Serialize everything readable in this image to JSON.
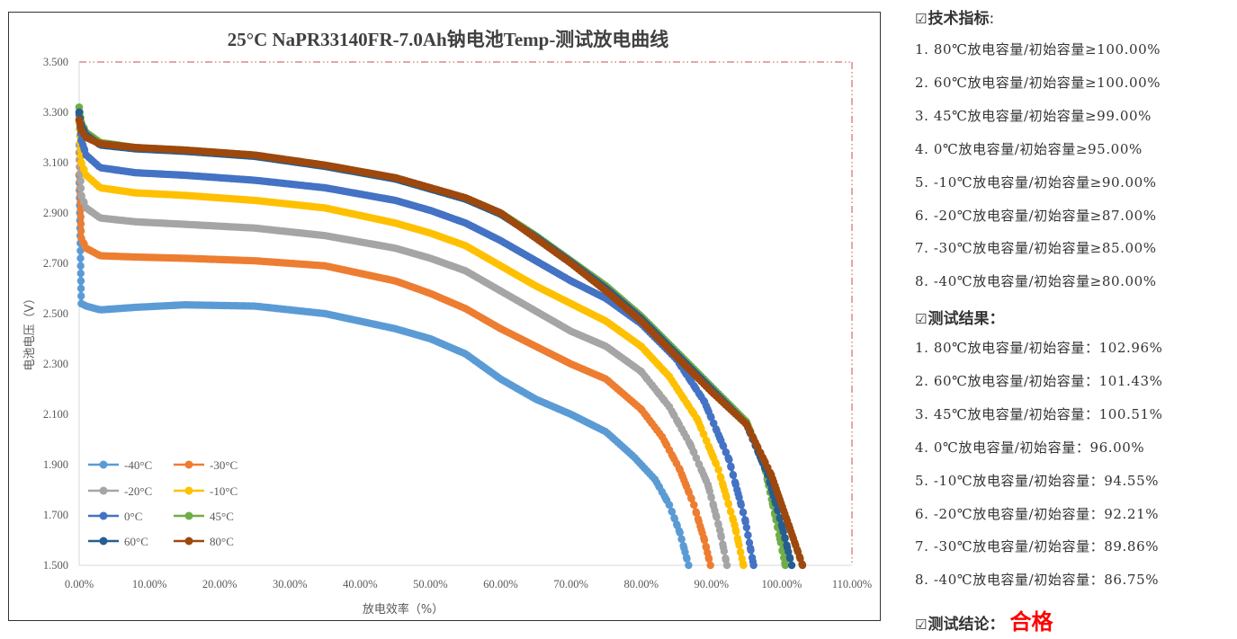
{
  "chart_data": {
    "type": "line",
    "title": "25°C NaPR33140FR-7.0Ah钠电池Temp-测试放电曲线",
    "xlabel": "放电效率（%）",
    "ylabel": "电池电压（V）",
    "xlim": [
      0,
      110
    ],
    "ylim": [
      1.5,
      3.5
    ],
    "x_ticks": [
      "0.00%",
      "10.00%",
      "20.00%",
      "30.00%",
      "40.00%",
      "50.00%",
      "60.00%",
      "70.00%",
      "80.00%",
      "90.00%",
      "100.00%",
      "110.00%"
    ],
    "y_ticks": [
      "1.500",
      "1.700",
      "1.900",
      "2.100",
      "2.300",
      "2.500",
      "2.700",
      "2.900",
      "3.100",
      "3.300",
      "3.500"
    ],
    "grid": false,
    "legend_position": "bottom-left",
    "series": [
      {
        "name": "-40°C",
        "color": "#5b9bd5",
        "x": [
          0,
          0.3,
          1,
          3,
          8,
          15,
          25,
          35,
          45,
          50,
          55,
          60,
          65,
          70,
          75,
          79,
          82,
          84,
          85.5,
          86.75
        ],
        "y": [
          3.05,
          2.54,
          2.53,
          2.515,
          2.525,
          2.535,
          2.53,
          2.5,
          2.44,
          2.4,
          2.34,
          2.24,
          2.16,
          2.1,
          2.03,
          1.93,
          1.84,
          1.74,
          1.63,
          1.5
        ]
      },
      {
        "name": "-30°C",
        "color": "#ed7d31",
        "x": [
          0,
          0.3,
          1,
          3,
          8,
          15,
          25,
          35,
          45,
          50,
          55,
          60,
          65,
          70,
          75,
          80,
          83,
          85.5,
          87.5,
          89,
          89.86
        ],
        "y": [
          3.14,
          2.8,
          2.76,
          2.73,
          2.725,
          2.72,
          2.71,
          2.69,
          2.63,
          2.58,
          2.52,
          2.44,
          2.37,
          2.3,
          2.24,
          2.12,
          2.01,
          1.88,
          1.74,
          1.6,
          1.5
        ]
      },
      {
        "name": "-20°C",
        "color": "#a5a5a5",
        "x": [
          0,
          0.3,
          1,
          3,
          8,
          15,
          25,
          35,
          45,
          50,
          55,
          60,
          65,
          70,
          75,
          80,
          84,
          87,
          89.5,
          91.2,
          92.21
        ],
        "y": [
          3.17,
          2.97,
          2.92,
          2.88,
          2.865,
          2.855,
          2.84,
          2.81,
          2.76,
          2.72,
          2.67,
          2.59,
          2.51,
          2.43,
          2.37,
          2.27,
          2.13,
          1.98,
          1.82,
          1.64,
          1.5
        ]
      },
      {
        "name": "-10°C",
        "color": "#ffc000",
        "x": [
          0,
          0.3,
          1,
          3,
          8,
          15,
          25,
          35,
          45,
          50,
          55,
          60,
          65,
          70,
          75,
          80,
          84,
          88,
          91,
          93.3,
          94.55
        ],
        "y": [
          3.26,
          3.1,
          3.05,
          3.0,
          2.98,
          2.97,
          2.95,
          2.92,
          2.86,
          2.82,
          2.77,
          2.69,
          2.61,
          2.54,
          2.47,
          2.37,
          2.25,
          2.08,
          1.88,
          1.66,
          1.5
        ]
      },
      {
        "name": "0°C",
        "color": "#4472c4",
        "x": [
          0,
          0.3,
          1,
          3,
          8,
          15,
          25,
          35,
          45,
          50,
          55,
          60,
          65,
          70,
          75,
          80,
          85,
          89,
          92.5,
          94.8,
          96.0
        ],
        "y": [
          3.29,
          3.19,
          3.13,
          3.08,
          3.06,
          3.05,
          3.03,
          3.0,
          2.95,
          2.91,
          2.86,
          2.79,
          2.71,
          2.63,
          2.56,
          2.46,
          2.32,
          2.15,
          1.92,
          1.68,
          1.5
        ]
      },
      {
        "name": "45°C",
        "color": "#70ad47",
        "x": [
          0,
          0.3,
          1,
          3,
          8,
          15,
          25,
          35,
          45,
          50,
          55,
          60,
          65,
          70,
          75,
          80,
          85,
          90,
          95,
          97.5,
          99.2,
          100.51
        ],
        "y": [
          3.32,
          3.26,
          3.22,
          3.18,
          3.16,
          3.15,
          3.13,
          3.09,
          3.04,
          3.0,
          2.96,
          2.9,
          2.81,
          2.71,
          2.61,
          2.49,
          2.35,
          2.21,
          2.07,
          1.9,
          1.68,
          1.5
        ]
      },
      {
        "name": "60°C",
        "color": "#255e91",
        "x": [
          0,
          0.3,
          1,
          3,
          8,
          15,
          25,
          35,
          45,
          50,
          55,
          60,
          65,
          70,
          75,
          80,
          85,
          90,
          95,
          98,
          100,
          101.43
        ],
        "y": [
          3.3,
          3.25,
          3.21,
          3.17,
          3.155,
          3.145,
          3.125,
          3.085,
          3.035,
          2.995,
          2.955,
          2.895,
          2.805,
          2.705,
          2.6,
          2.48,
          2.34,
          2.2,
          2.06,
          1.86,
          1.66,
          1.5
        ]
      },
      {
        "name": "80°C",
        "color": "#9e480e",
        "x": [
          0,
          0.3,
          1,
          3,
          8,
          15,
          25,
          35,
          45,
          50,
          55,
          60,
          65,
          70,
          75,
          80,
          85,
          90,
          95,
          98.5,
          101,
          102.96
        ],
        "y": [
          3.27,
          3.23,
          3.2,
          3.175,
          3.16,
          3.15,
          3.13,
          3.09,
          3.04,
          3.0,
          2.96,
          2.9,
          2.8,
          2.7,
          2.59,
          2.47,
          2.33,
          2.19,
          2.06,
          1.86,
          1.66,
          1.5
        ]
      }
    ]
  },
  "sidebar": {
    "spec_header": "技术指标",
    "spec_colon": ":",
    "check_glyph": "☑",
    "specs": [
      "1. 80℃放电容量/初始容量≥100.00%",
      "2. 60℃放电容量/初始容量≥100.00%",
      "3. 45℃放电容量/初始容量≥99.00%",
      "4. 0℃放电容量/初始容量≥95.00%",
      "5. -10℃放电容量/初始容量≥90.00%",
      "6. -20℃放电容量/初始容量≥87.00%",
      "7. -30℃放电容量/初始容量≥85.00%",
      "8. -40℃放电容量/初始容量≥80.00%"
    ],
    "result_header": "测试结果：",
    "results": [
      "1. 80℃放电容量/初始容量：102.96%",
      "2. 60℃放电容量/初始容量：101.43%",
      "3. 45℃放电容量/初始容量：100.51%",
      "4. 0℃放电容量/初始容量：96.00%",
      "5. -10℃放电容量/初始容量：94.55%",
      "6. -20℃放电容量/初始容量：92.21%",
      "7. -30℃放电容量/初始容量：89.86%",
      "8. -40℃放电容量/初始容量：86.75%"
    ],
    "conclusion_header": "测试结论：",
    "conclusion_value": "合格",
    "conclusion_color": "#ff0000"
  }
}
